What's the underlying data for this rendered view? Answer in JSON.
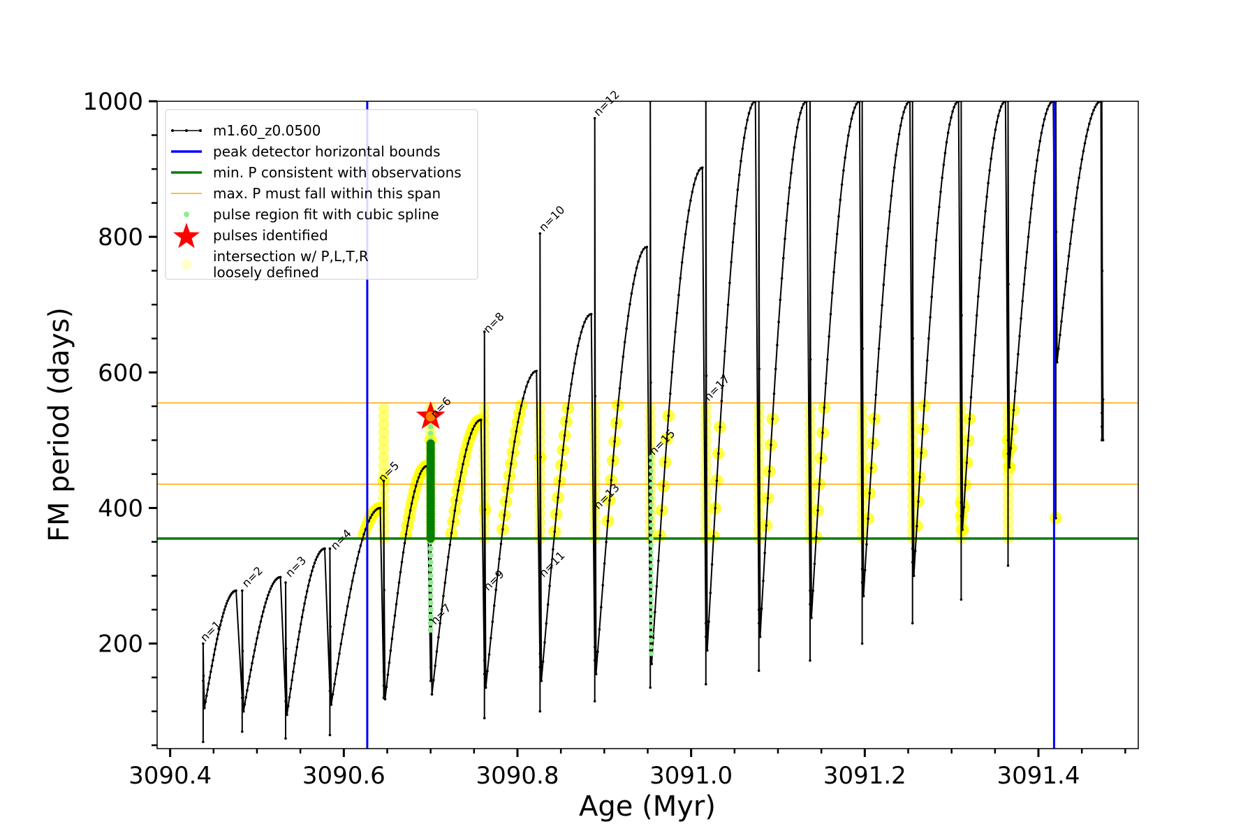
{
  "chart_data": {
    "type": "line",
    "title": "",
    "xlabel": "Age (Myr)",
    "ylabel": "FM period (days)",
    "xlim": [
      3090.385,
      3091.515
    ],
    "ylim": [
      45,
      1000
    ],
    "xticks": [
      3090.4,
      3090.6,
      3090.8,
      3091.0,
      3091.2,
      3091.4
    ],
    "xtick_labels": [
      "3090.4",
      "3090.6",
      "3090.8",
      "3091.0",
      "3091.2",
      "3091.4"
    ],
    "yticks": [
      200,
      400,
      600,
      800,
      1000
    ],
    "ytick_labels": [
      "200",
      "400",
      "600",
      "800",
      "1000"
    ],
    "grid": false,
    "legend_position": "top-left",
    "colors": {
      "track": "#000000",
      "bounds": "#0000ff",
      "min_period": "#008000",
      "max_span": "#ffa500",
      "spline": "#90ee90",
      "pulse": "#ff0000",
      "loose": "#ffff00"
    },
    "legend": [
      {
        "label": "m1.60_z0.0500",
        "style": "line-dots",
        "color": "#000000"
      },
      {
        "label": "peak detector horizontal bounds",
        "style": "line",
        "color": "#0000ff"
      },
      {
        "label": "min. P consistent with observations",
        "style": "line",
        "color": "#008000"
      },
      {
        "label": "max. P must fall within this span",
        "style": "thin-line",
        "color": "#ffa500"
      },
      {
        "label": "pulse region fit with cubic spline",
        "style": "dot",
        "color": "#90ee90"
      },
      {
        "label": "pulses identified",
        "style": "star",
        "color": "#ff0000"
      },
      {
        "label": "intersection w/ P,L,T,R",
        "label2": "loosely defined",
        "style": "big-dot",
        "color": "#ffffcc"
      }
    ],
    "blue_bounds_x": [
      3090.627,
      3091.418
    ],
    "min_period": 355,
    "max_period_span": [
      435,
      555
    ],
    "pulses_identified": [
      {
        "x": 3090.7,
        "y": 535
      }
    ],
    "pulse_labels": [
      {
        "text": "n=1",
        "x": 3090.437,
        "y": 200
      },
      {
        "text": "n=2",
        "x": 3090.485,
        "y": 280
      },
      {
        "text": "n=3",
        "x": 3090.535,
        "y": 295
      },
      {
        "text": "n=4",
        "x": 3090.587,
        "y": 335
      },
      {
        "text": "n=5",
        "x": 3090.642,
        "y": 435
      },
      {
        "text": "n=6",
        "x": 3090.702,
        "y": 530
      },
      {
        "text": "n=7",
        "x": 3090.702,
        "y": 225
      },
      {
        "text": "n=8",
        "x": 3090.763,
        "y": 655
      },
      {
        "text": "n=9",
        "x": 3090.763,
        "y": 275
      },
      {
        "text": "n=10",
        "x": 3090.827,
        "y": 805
      },
      {
        "text": "n=11",
        "x": 3090.827,
        "y": 295
      },
      {
        "text": "n=12",
        "x": 3090.89,
        "y": 975
      },
      {
        "text": "n=13",
        "x": 3090.89,
        "y": 395
      },
      {
        "text": "n=15",
        "x": 3090.954,
        "y": 475
      },
      {
        "text": "n=17",
        "x": 3091.017,
        "y": 555
      }
    ],
    "pulses": [
      {
        "t": 3090.438,
        "min": 105,
        "max": 278,
        "top": 200,
        "bot": 55,
        "drop": 0.009
      },
      {
        "t": 3090.483,
        "min": 100,
        "max": 298,
        "top": 278,
        "bot": 70,
        "drop": 0.007
      },
      {
        "t": 3090.533,
        "min": 95,
        "max": 340,
        "top": 290,
        "bot": 60,
        "drop": 0.006
      },
      {
        "t": 3090.584,
        "min": 110,
        "max": 400,
        "top": 340,
        "bot": 65,
        "drop": 0.006
      },
      {
        "t": 3090.646,
        "min": 118,
        "max": 462,
        "top": 440,
        "bot": 120,
        "drop": 0.004
      },
      {
        "t": 3090.7,
        "min": 125,
        "max": 530,
        "top": 500,
        "bot": 215,
        "drop": 0.004
      },
      {
        "t": 3090.762,
        "min": 135,
        "max": 602,
        "top": 660,
        "bot": 90,
        "drop": 0.004
      },
      {
        "t": 3090.826,
        "min": 145,
        "max": 686,
        "top": 805,
        "bot": 100,
        "drop": 0.004
      },
      {
        "t": 3090.889,
        "min": 155,
        "max": 785,
        "top": 975,
        "bot": 115,
        "drop": 0.004
      },
      {
        "t": 3090.953,
        "min": 170,
        "max": 902,
        "top": 1000,
        "bot": 135,
        "drop": 0.004
      },
      {
        "t": 3091.017,
        "min": 190,
        "max": 1000,
        "top": 1000,
        "bot": 140,
        "drop": 0.004
      },
      {
        "t": 3091.078,
        "min": 210,
        "max": 1000,
        "top": 1000,
        "bot": 160,
        "drop": 0.004
      },
      {
        "t": 3091.137,
        "min": 238,
        "max": 1000,
        "top": 1000,
        "bot": 175,
        "drop": 0.004
      },
      {
        "t": 3091.197,
        "min": 270,
        "max": 1000,
        "top": 1000,
        "bot": 200,
        "drop": 0.003
      },
      {
        "t": 3091.255,
        "min": 300,
        "max": 1000,
        "top": 1000,
        "bot": 230,
        "drop": 0.003
      },
      {
        "t": 3091.311,
        "min": 368,
        "max": 1000,
        "top": 1000,
        "bot": 265,
        "drop": 0.003
      },
      {
        "t": 3091.365,
        "min": 460,
        "max": 1000,
        "top": 1000,
        "bot": 315,
        "drop": 0.003
      },
      {
        "t": 3091.42,
        "min": 615,
        "max": 1000,
        "top": 1000,
        "bot": 385,
        "drop": 0.003
      },
      {
        "t": 3091.473,
        "min": 500,
        "max": 560,
        "top": 1000,
        "bot": 500,
        "drop": 0.001
      }
    ]
  }
}
